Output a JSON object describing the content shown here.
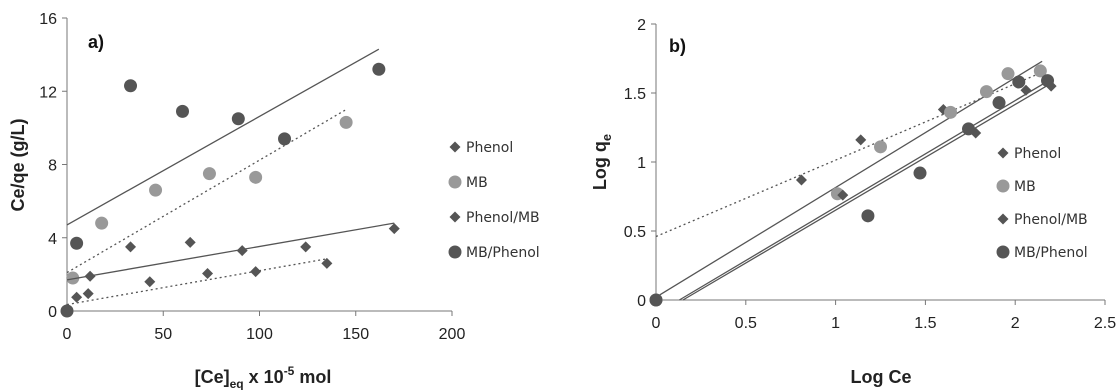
{
  "chart_data": [
    {
      "type": "scatter",
      "panel_label": "a)",
      "xlabel": {
        "main": "[Ce]",
        "sub": "eq",
        "mid": " x 10",
        "sup": "-5",
        "tail": " mol"
      },
      "ylabel": "Ce/qe (g/L)",
      "xlim": [
        0,
        200
      ],
      "ylim": [
        0,
        16
      ],
      "xticks": [
        "0",
        "50",
        "100",
        "150",
        "200"
      ],
      "yticks": [
        "0",
        "4",
        "8",
        "12",
        "16"
      ],
      "legend_position": "right",
      "series": [
        {
          "name": "Phenol",
          "marker": "diamond",
          "color": "#555555",
          "points": [
            [
              0,
              0.1
            ],
            [
              5,
              0.75
            ],
            [
              11,
              0.95
            ],
            [
              43,
              1.6
            ],
            [
              73,
              2.05
            ],
            [
              98,
              2.15
            ],
            [
              135,
              2.6
            ]
          ],
          "trendline": {
            "x": [
              0,
              135
            ],
            "y": [
              0.35,
              2.85
            ],
            "style": "dotted"
          }
        },
        {
          "name": "MB",
          "marker": "circle",
          "color": "#999999",
          "points": [
            [
              3,
              1.8
            ],
            [
              18,
              4.8
            ],
            [
              46,
              6.6
            ],
            [
              74,
              7.5
            ],
            [
              98,
              7.3
            ],
            [
              145,
              10.3
            ]
          ],
          "trendline": {
            "x": [
              0,
              145
            ],
            "y": [
              2.1,
              11.0
            ],
            "style": "dotted"
          }
        },
        {
          "name": "Phenol/MB",
          "marker": "diamond",
          "color": "#555555",
          "points": [
            [
              12,
              1.9
            ],
            [
              33,
              3.5
            ],
            [
              64,
              3.75
            ],
            [
              91,
              3.3
            ],
            [
              124,
              3.5
            ],
            [
              170,
              4.5
            ]
          ],
          "trendline": {
            "x": [
              0,
              170
            ],
            "y": [
              1.7,
              4.8
            ],
            "style": "solid"
          }
        },
        {
          "name": "MB/Phenol",
          "marker": "circle",
          "color": "#555555",
          "points": [
            [
              0,
              0
            ],
            [
              5,
              3.7
            ],
            [
              33,
              12.3
            ],
            [
              60,
              10.9
            ],
            [
              89,
              10.5
            ],
            [
              113,
              9.4
            ],
            [
              162,
              13.2
            ]
          ],
          "trendline": {
            "x": [
              0,
              162
            ],
            "y": [
              4.7,
              14.3
            ],
            "style": "solid"
          }
        }
      ]
    },
    {
      "type": "scatter",
      "panel_label": "b)",
      "xlabel": {
        "main": "Log Ce",
        "sub": "",
        "mid": "",
        "sup": "",
        "tail": ""
      },
      "ylabel": {
        "main": "Log q",
        "sub": "e"
      },
      "xlim": [
        0,
        2.5
      ],
      "ylim": [
        0,
        2
      ],
      "xticks": [
        "0",
        "0.5",
        "1",
        "1.5",
        "2",
        "2.5"
      ],
      "yticks": [
        "0",
        "0.5",
        "1",
        "1.5",
        "2"
      ],
      "legend_position": "right",
      "series": [
        {
          "name": "Phenol",
          "marker": "diamond",
          "color": "#555555",
          "points": [
            [
              0.81,
              0.87
            ],
            [
              1.14,
              1.16
            ],
            [
              1.6,
              1.38
            ],
            [
              2.06,
              1.52
            ]
          ],
          "trendline": {
            "x": [
              0,
              2.15
            ],
            "y": [
              0.46,
              1.65
            ],
            "style": "dotted"
          }
        },
        {
          "name": "MB",
          "marker": "circle",
          "color": "#999999",
          "points": [
            [
              0,
              0
            ],
            [
              1.01,
              0.77
            ],
            [
              1.25,
              1.11
            ],
            [
              1.64,
              1.36
            ],
            [
              1.84,
              1.51
            ],
            [
              1.96,
              1.64
            ],
            [
              2.14,
              1.66
            ]
          ],
          "trendline": {
            "x": [
              0,
              2.15
            ],
            "y": [
              0.02,
              1.73
            ],
            "style": "solid"
          }
        },
        {
          "name": "Phenol/MB",
          "marker": "diamond",
          "color": "#555555",
          "points": [
            [
              1.04,
              0.76
            ],
            [
              1.78,
              1.21
            ],
            [
              2.2,
              1.55
            ]
          ],
          "trendline": {
            "x": [
              0.15,
              2.2
            ],
            "y": [
              0,
              1.57
            ],
            "style": "solid"
          }
        },
        {
          "name": "MB/Phenol",
          "marker": "circle",
          "color": "#555555",
          "points": [
            [
              0,
              0
            ],
            [
              1.18,
              0.61
            ],
            [
              1.47,
              0.92
            ],
            [
              1.74,
              1.24
            ],
            [
              1.91,
              1.43
            ],
            [
              2.02,
              1.58
            ],
            [
              2.18,
              1.59
            ]
          ],
          "trendline": {
            "x": [
              0.13,
              2.2
            ],
            "y": [
              0,
              1.6
            ],
            "style": "solid"
          }
        }
      ]
    }
  ]
}
